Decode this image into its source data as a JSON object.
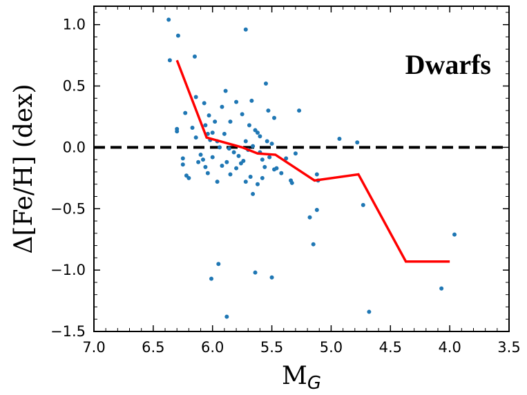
{
  "chart_data": {
    "type": "scatter",
    "title": "",
    "xlabel_main": "M",
    "xlabel_sub": "G",
    "ylabel": "Δ[Fe/H] (dex)",
    "annotation": "Dwarfs",
    "xlim": [
      7.0,
      3.5
    ],
    "ylim": [
      -1.5,
      1.15
    ],
    "x_inverted": true,
    "xticks": [
      "7.0",
      "6.5",
      "6.0",
      "5.5",
      "5.0",
      "4.5",
      "4.0",
      "3.5"
    ],
    "xtick_values": [
      7.0,
      6.5,
      6.0,
      5.5,
      5.0,
      4.5,
      4.0,
      3.5
    ],
    "yticks": [
      "1.0",
      "0.5",
      "0.0",
      "−0.5",
      "−1.0",
      "−1.5"
    ],
    "ytick_values": [
      1.0,
      0.5,
      0.0,
      -0.5,
      -1.0,
      -1.5
    ],
    "reference_line": {
      "y": 0.0,
      "style": "dashed",
      "color": "#000000"
    },
    "colors": {
      "points": "#1f77b4",
      "trend": "#ff0000",
      "reference": "#000000"
    },
    "points": [
      [
        6.37,
        1.04
      ],
      [
        6.29,
        0.91
      ],
      [
        6.36,
        0.71
      ],
      [
        6.15,
        0.74
      ],
      [
        5.72,
        0.96
      ],
      [
        6.23,
        0.28
      ],
      [
        6.17,
        0.16
      ],
      [
        6.3,
        0.15
      ],
      [
        6.3,
        0.13
      ],
      [
        6.14,
        0.41
      ],
      [
        6.07,
        0.36
      ],
      [
        6.03,
        0.26
      ],
      [
        5.98,
        0.21
      ],
      [
        5.92,
        0.33
      ],
      [
        5.89,
        0.46
      ],
      [
        5.85,
        0.21
      ],
      [
        5.8,
        0.37
      ],
      [
        5.75,
        0.27
      ],
      [
        5.69,
        0.18
      ],
      [
        5.67,
        0.38
      ],
      [
        5.55,
        0.52
      ],
      [
        5.6,
        0.09
      ],
      [
        5.53,
        0.3
      ],
      [
        5.48,
        0.24
      ],
      [
        5.27,
        0.3
      ],
      [
        6.06,
        0.18
      ],
      [
        6.04,
        0.11
      ],
      [
        6.02,
        0.06
      ],
      [
        6.0,
        0.12
      ],
      [
        5.96,
        0.05
      ],
      [
        5.94,
        0.0
      ],
      [
        5.9,
        0.11
      ],
      [
        5.86,
        -0.01
      ],
      [
        5.82,
        -0.04
      ],
      [
        5.78,
        -0.07
      ],
      [
        5.74,
        -0.11
      ],
      [
        5.72,
        0.05
      ],
      [
        5.7,
        -0.02
      ],
      [
        5.66,
        0.01
      ],
      [
        5.64,
        0.14
      ],
      [
        5.62,
        0.12
      ],
      [
        5.6,
        -0.04
      ],
      [
        5.58,
        -0.1
      ],
      [
        5.56,
        -0.16
      ],
      [
        5.54,
        0.05
      ],
      [
        5.52,
        -0.08
      ],
      [
        5.5,
        0.03
      ],
      [
        5.48,
        -0.18
      ],
      [
        5.46,
        -0.17
      ],
      [
        5.42,
        -0.21
      ],
      [
        5.38,
        -0.09
      ],
      [
        5.34,
        -0.27
      ],
      [
        5.33,
        -0.29
      ],
      [
        5.3,
        -0.05
      ],
      [
        6.14,
        0.08
      ],
      [
        6.12,
        -0.12
      ],
      [
        6.1,
        -0.06
      ],
      [
        6.08,
        -0.1
      ],
      [
        6.06,
        -0.16
      ],
      [
        6.04,
        -0.21
      ],
      [
        6.0,
        -0.08
      ],
      [
        5.96,
        -0.28
      ],
      [
        5.92,
        -0.15
      ],
      [
        5.88,
        -0.12
      ],
      [
        5.85,
        -0.22
      ],
      [
        5.8,
        -0.17
      ],
      [
        5.76,
        -0.13
      ],
      [
        5.72,
        -0.28
      ],
      [
        5.68,
        -0.24
      ],
      [
        5.66,
        -0.38
      ],
      [
        5.62,
        -0.3
      ],
      [
        5.58,
        -0.25
      ],
      [
        6.25,
        -0.09
      ],
      [
        6.25,
        -0.14
      ],
      [
        6.22,
        -0.23
      ],
      [
        6.2,
        -0.25
      ],
      [
        5.18,
        -0.57
      ],
      [
        5.12,
        -0.22
      ],
      [
        5.11,
        -0.27
      ],
      [
        5.12,
        -0.51
      ],
      [
        5.15,
        -0.79
      ],
      [
        4.93,
        0.07
      ],
      [
        4.78,
        0.04
      ],
      [
        4.73,
        -0.47
      ],
      [
        5.95,
        -0.95
      ],
      [
        6.01,
        -1.07
      ],
      [
        5.64,
        -1.02
      ],
      [
        5.5,
        -1.06
      ],
      [
        5.88,
        -1.38
      ],
      [
        4.68,
        -1.34
      ],
      [
        4.07,
        -1.15
      ],
      [
        3.96,
        -0.71
      ]
    ],
    "series": [
      {
        "x": [
          6.3,
          6.05,
          5.75,
          5.62,
          5.47,
          5.14,
          4.77,
          4.37,
          4.0
        ],
        "y": [
          0.71,
          0.08,
          0.0,
          -0.05,
          -0.06,
          -0.27,
          -0.22,
          -0.93,
          -0.93
        ]
      }
    ]
  }
}
